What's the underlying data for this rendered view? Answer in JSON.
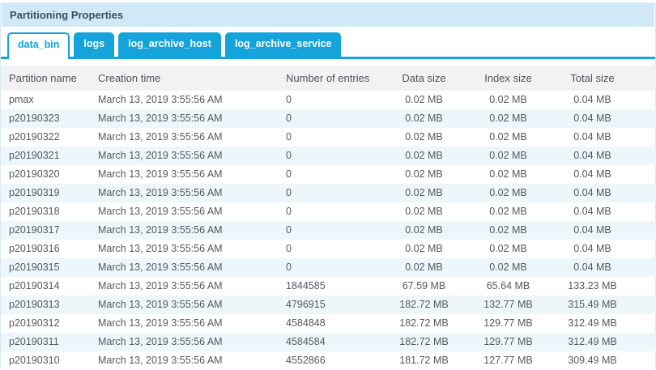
{
  "panel": {
    "title": "Partitioning Properties"
  },
  "tabs": [
    {
      "label": "data_bin",
      "active": true
    },
    {
      "label": "logs",
      "active": false
    },
    {
      "label": "log_archive_host",
      "active": false
    },
    {
      "label": "log_archive_service",
      "active": false
    }
  ],
  "table": {
    "columns": [
      "Partition name",
      "Creation time",
      "Number of entries",
      "Data size",
      "Index size",
      "Total size"
    ],
    "rows": [
      [
        "pmax",
        "March 13, 2019 3:55:56 AM",
        "0",
        "0.02 MB",
        "0.02 MB",
        "0.04 MB"
      ],
      [
        "p20190323",
        "March 13, 2019 3:55:56 AM",
        "0",
        "0.02 MB",
        "0.02 MB",
        "0.04 MB"
      ],
      [
        "p20190322",
        "March 13, 2019 3:55:56 AM",
        "0",
        "0.02 MB",
        "0.02 MB",
        "0.04 MB"
      ],
      [
        "p20190321",
        "March 13, 2019 3:55:56 AM",
        "0",
        "0.02 MB",
        "0.02 MB",
        "0.04 MB"
      ],
      [
        "p20190320",
        "March 13, 2019 3:55:56 AM",
        "0",
        "0.02 MB",
        "0.02 MB",
        "0.04 MB"
      ],
      [
        "p20190319",
        "March 13, 2019 3:55:56 AM",
        "0",
        "0.02 MB",
        "0.02 MB",
        "0.04 MB"
      ],
      [
        "p20190318",
        "March 13, 2019 3:55:56 AM",
        "0",
        "0.02 MB",
        "0.02 MB",
        "0.04 MB"
      ],
      [
        "p20190317",
        "March 13, 2019 3:55:56 AM",
        "0",
        "0.02 MB",
        "0.02 MB",
        "0.04 MB"
      ],
      [
        "p20190316",
        "March 13, 2019 3:55:56 AM",
        "0",
        "0.02 MB",
        "0.02 MB",
        "0.04 MB"
      ],
      [
        "p20190315",
        "March 13, 2019 3:55:56 AM",
        "0",
        "0.02 MB",
        "0.02 MB",
        "0.04 MB"
      ],
      [
        "p20190314",
        "March 13, 2019 3:55:56 AM",
        "1844585",
        "67.59 MB",
        "65.64 MB",
        "133.23 MB"
      ],
      [
        "p20190313",
        "March 13, 2019 3:55:56 AM",
        "4796915",
        "182.72 MB",
        "132.77 MB",
        "315.49 MB"
      ],
      [
        "p20190312",
        "March 13, 2019 3:55:56 AM",
        "4584848",
        "182.72 MB",
        "129.77 MB",
        "312.49 MB"
      ],
      [
        "p20190311",
        "March 13, 2019 3:55:56 AM",
        "4584584",
        "182.72 MB",
        "129.77 MB",
        "312.49 MB"
      ],
      [
        "p20190310",
        "March 13, 2019 3:55:56 AM",
        "4552866",
        "181.72 MB",
        "127.77 MB",
        "309.49 MB"
      ]
    ]
  },
  "colors": {
    "accent_blue": "#14a3da",
    "panel_header_bg": "#cfeaf6",
    "stripe_row_bg": "#edf6fb",
    "table_header_bg": "#f2f2f3",
    "title_text": "#3e4f5f"
  }
}
